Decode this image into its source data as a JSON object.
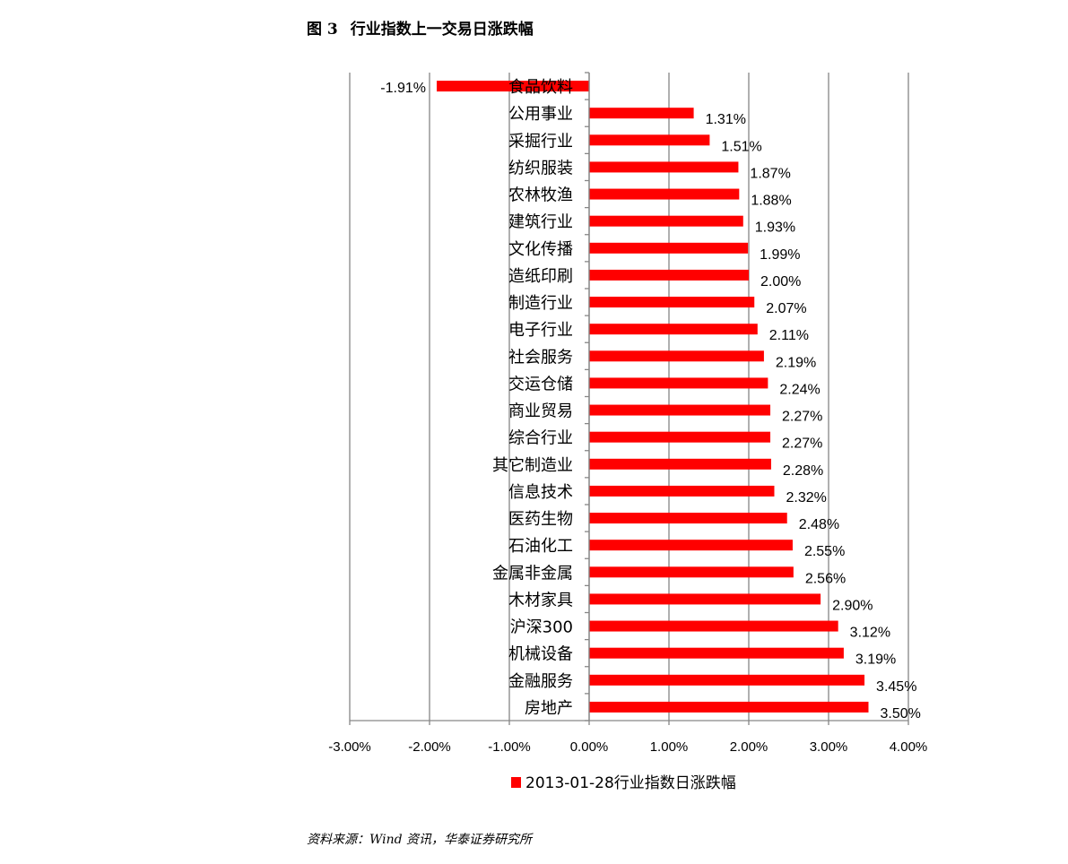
{
  "figure": {
    "title_prefix": "图 3",
    "title": "行业指数上一交易日涨跌幅",
    "source": "资料来源：Wind 资讯，华泰证券研究所"
  },
  "colors": {
    "bar": "#ff0000",
    "grid": "#868686",
    "axis": "#868686"
  },
  "chart_data": {
    "type": "bar",
    "orientation": "horizontal",
    "xlim": [
      -0.03,
      0.04
    ],
    "x_ticks": [
      "-3.00%",
      "-2.00%",
      "-1.00%",
      "0.00%",
      "1.00%",
      "2.00%",
      "3.00%",
      "4.00%"
    ],
    "grid": "vertical",
    "legend_position": "bottom",
    "categories": [
      "食品饮料",
      "公用事业",
      "采掘行业",
      "纺织服装",
      "农林牧渔",
      "建筑行业",
      "文化传播",
      "造纸印刷",
      "制造行业",
      "电子行业",
      "社会服务",
      "交运仓储",
      "商业贸易",
      "综合行业",
      "其它制造业",
      "信息技术",
      "医药生物",
      "石油化工",
      "金属非金属",
      "木材家具",
      "沪深300",
      "机械设备",
      "金融服务",
      "房地产"
    ],
    "series": [
      {
        "name": "2013-01-28行业指数日涨跌幅",
        "values": [
          -0.0191,
          0.0131,
          0.0151,
          0.0187,
          0.0188,
          0.0193,
          0.0199,
          0.02,
          0.0207,
          0.0211,
          0.0219,
          0.0224,
          0.0227,
          0.0227,
          0.0228,
          0.0232,
          0.0248,
          0.0255,
          0.0256,
          0.029,
          0.0312,
          0.0319,
          0.0345,
          0.035
        ],
        "labels": [
          "-1.91%",
          "1.31%",
          "1.51%",
          "1.87%",
          "1.88%",
          "1.93%",
          "1.99%",
          "2.00%",
          "2.07%",
          "2.11%",
          "2.19%",
          "2.24%",
          "2.27%",
          "2.27%",
          "2.28%",
          "2.32%",
          "2.48%",
          "2.55%",
          "2.56%",
          "2.90%",
          "3.12%",
          "3.19%",
          "3.45%",
          "3.50%"
        ]
      }
    ]
  }
}
